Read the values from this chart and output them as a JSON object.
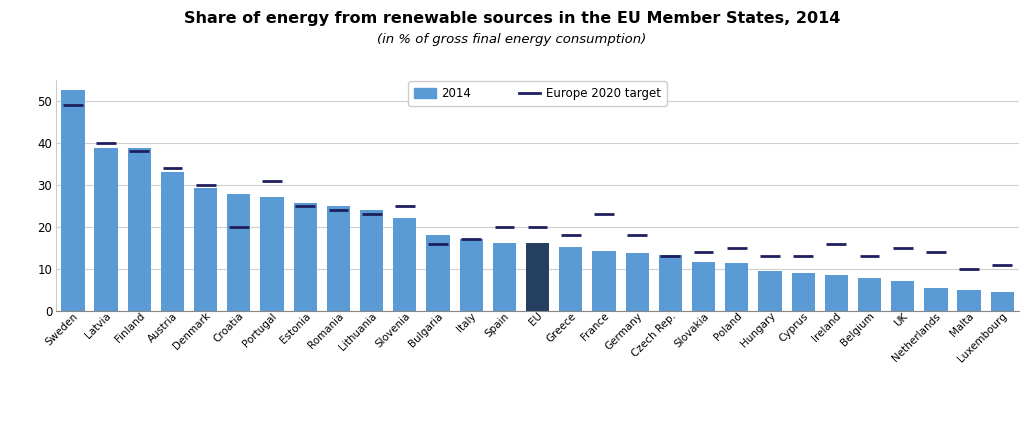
{
  "title": "Share of energy from renewable sources in the EU Member States, 2014",
  "subtitle": "(in % of gross final energy consumption)",
  "countries": [
    "Sweden",
    "Latvia",
    "Finland",
    "Austria",
    "Denmark",
    "Croatia",
    "Portugal",
    "Estonia",
    "Romania",
    "Lithuania",
    "Slovenia",
    "Bulgaria",
    "Italy",
    "Spain",
    "EU",
    "Greece",
    "France",
    "Germany",
    "Czech Rep.",
    "Slovakia",
    "Poland",
    "Hungary",
    "Cyprus",
    "Ireland",
    "Belgium",
    "UK",
    "Netherlands",
    "Malta",
    "Luxembourg"
  ],
  "values_2014": [
    52.6,
    38.7,
    38.7,
    33.1,
    29.2,
    27.9,
    27.0,
    25.6,
    24.9,
    23.9,
    22.0,
    18.0,
    17.1,
    16.2,
    16.1,
    15.3,
    14.3,
    13.8,
    13.4,
    11.6,
    11.4,
    9.5,
    9.0,
    8.6,
    7.9,
    7.0,
    5.5,
    5.0,
    4.5
  ],
  "targets_2020": [
    49.0,
    40.0,
    38.0,
    34.0,
    30.0,
    20.0,
    31.0,
    25.0,
    24.0,
    23.0,
    25.0,
    16.0,
    17.0,
    20.0,
    20.0,
    18.0,
    23.0,
    18.0,
    13.0,
    14.0,
    15.0,
    13.0,
    13.0,
    16.0,
    13.0,
    15.0,
    14.0,
    10.0,
    11.0
  ],
  "bar_color_default": "#5b9bd5",
  "bar_color_eu": "#243f60",
  "target_color": "#1f1f5e",
  "background_color": "#ffffff",
  "plot_bg_color": "#ffffff",
  "grid_color": "#d0d0d0",
  "ylim": [
    0,
    55
  ],
  "yticks": [
    0,
    10,
    20,
    30,
    40,
    50
  ],
  "title_fontsize": 11.5,
  "subtitle_fontsize": 9.5,
  "bar_width": 0.7
}
